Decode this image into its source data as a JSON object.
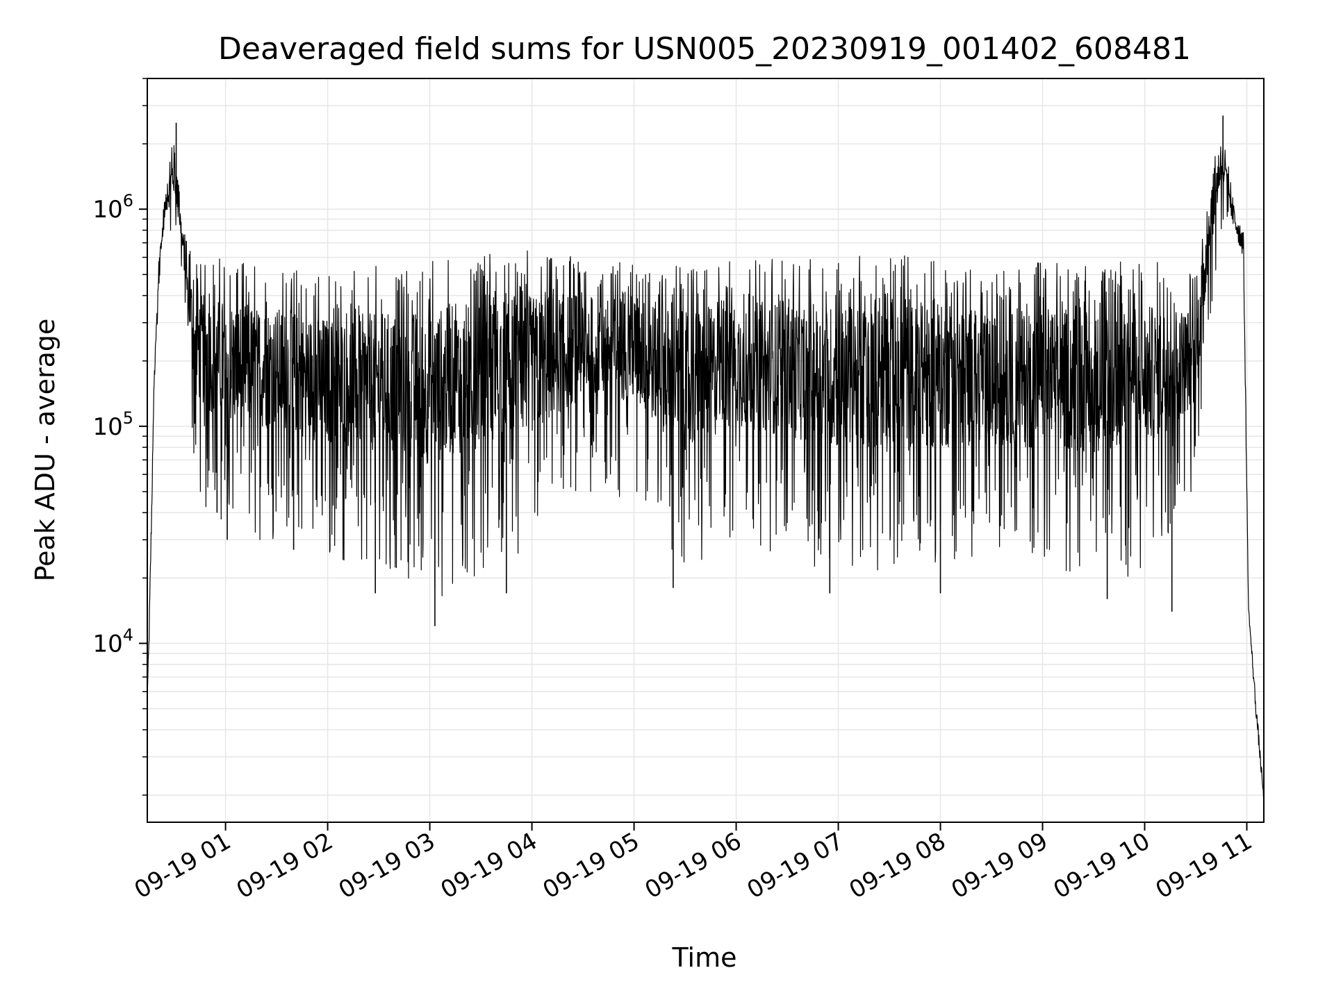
{
  "chart_data": {
    "type": "line",
    "title": "Deaveraged field sums for USN005_20230919_001402_608481",
    "xlabel": "Time",
    "ylabel": "Peak ADU - average",
    "yscale": "log",
    "grid": true,
    "line_color": "#000000",
    "grid_color": "#e6e6e6",
    "xlim": [
      "2023-09-19T00:14:02",
      "2023-09-19T11:10:00"
    ],
    "ylim": [
      1500,
      4000000
    ],
    "x_ticks": [
      {
        "value": "2023-09-19T01:00",
        "label": "09-19 01"
      },
      {
        "value": "2023-09-19T02:00",
        "label": "09-19 02"
      },
      {
        "value": "2023-09-19T03:00",
        "label": "09-19 03"
      },
      {
        "value": "2023-09-19T04:00",
        "label": "09-19 04"
      },
      {
        "value": "2023-09-19T05:00",
        "label": "09-19 05"
      },
      {
        "value": "2023-09-19T06:00",
        "label": "09-19 06"
      },
      {
        "value": "2023-09-19T07:00",
        "label": "09-19 07"
      },
      {
        "value": "2023-09-19T08:00",
        "label": "09-19 08"
      },
      {
        "value": "2023-09-19T09:00",
        "label": "09-19 09"
      },
      {
        "value": "2023-09-19T10:00",
        "label": "09-19 10"
      },
      {
        "value": "2023-09-19T11:00",
        "label": "09-19 11"
      }
    ],
    "y_ticks": [
      {
        "value": 10000,
        "base": "10",
        "exp": "4"
      },
      {
        "value": 100000,
        "base": "10",
        "exp": "5"
      },
      {
        "value": 1000000,
        "base": "10",
        "exp": "6"
      }
    ],
    "envelope": [
      {
        "x": "2023-09-19T00:14:02",
        "low": 5500,
        "high": 6000
      },
      {
        "x": "2023-09-19T00:15:00",
        "low": 9000,
        "high": 11000
      },
      {
        "x": "2023-09-19T00:18:00",
        "low": 120000,
        "high": 180000
      },
      {
        "x": "2023-09-19T00:21:00",
        "low": 450000,
        "high": 650000
      },
      {
        "x": "2023-09-19T00:24:00",
        "low": 800000,
        "high": 1100000
      },
      {
        "x": "2023-09-19T00:30:00",
        "low": 700000,
        "high": 2500000
      },
      {
        "x": "2023-09-19T00:35:00",
        "low": 500000,
        "high": 800000
      },
      {
        "x": "2023-09-19T00:42:00",
        "low": 50000,
        "high": 600000
      },
      {
        "x": "2023-09-19T01:00:00",
        "low": 30000,
        "high": 600000
      },
      {
        "x": "2023-09-19T01:30:00",
        "low": 30000,
        "high": 550000
      },
      {
        "x": "2023-09-19T02:00:00",
        "low": 25000,
        "high": 500000
      },
      {
        "x": "2023-09-19T02:30:00",
        "low": 20000,
        "high": 550000
      },
      {
        "x": "2023-09-19T03:00:00",
        "low": 15000,
        "high": 600000
      },
      {
        "x": "2023-09-19T03:30:00",
        "low": 20000,
        "high": 650000
      },
      {
        "x": "2023-09-19T04:00:00",
        "low": 25000,
        "high": 650000
      },
      {
        "x": "2023-09-19T04:30:00",
        "low": 50000,
        "high": 600000
      },
      {
        "x": "2023-09-19T05:00:00",
        "low": 45000,
        "high": 600000
      },
      {
        "x": "2023-09-19T05:30:00",
        "low": 20000,
        "high": 550000
      },
      {
        "x": "2023-09-19T06:00:00",
        "low": 30000,
        "high": 600000
      },
      {
        "x": "2023-09-19T06:30:00",
        "low": 25000,
        "high": 600000
      },
      {
        "x": "2023-09-19T07:00:00",
        "low": 20000,
        "high": 600000
      },
      {
        "x": "2023-09-19T07:30:00",
        "low": 18000,
        "high": 650000
      },
      {
        "x": "2023-09-19T08:00:00",
        "low": 20000,
        "high": 600000
      },
      {
        "x": "2023-09-19T08:30:00",
        "low": 25000,
        "high": 500000
      },
      {
        "x": "2023-09-19T09:00:00",
        "low": 20000,
        "high": 600000
      },
      {
        "x": "2023-09-19T09:30:00",
        "low": 20000,
        "high": 550000
      },
      {
        "x": "2023-09-19T10:00:00",
        "low": 20000,
        "high": 600000
      },
      {
        "x": "2023-09-19T10:30:00",
        "low": 50000,
        "high": 500000
      },
      {
        "x": "2023-09-19T10:38:00",
        "low": 300000,
        "high": 1500000
      },
      {
        "x": "2023-09-19T10:45:00",
        "low": 800000,
        "high": 2700000
      },
      {
        "x": "2023-09-19T10:52:00",
        "low": 800000,
        "high": 1100000
      },
      {
        "x": "2023-09-19T10:58:00",
        "low": 600000,
        "high": 800000
      },
      {
        "x": "2023-09-19T11:01:00",
        "low": 14000,
        "high": 15000
      },
      {
        "x": "2023-09-19T11:05:00",
        "low": 5000,
        "high": 6000
      },
      {
        "x": "2023-09-19T11:10:00",
        "low": 1800,
        "high": 2000
      }
    ],
    "spikes": [
      {
        "x": "2023-09-19T00:31:00",
        "y": 2500000
      },
      {
        "x": "2023-09-19T00:55:00",
        "y": 40000
      },
      {
        "x": "2023-09-19T01:01:00",
        "y": 30000
      },
      {
        "x": "2023-09-19T01:40:00",
        "y": 27000
      },
      {
        "x": "2023-09-19T02:28:00",
        "y": 17000
      },
      {
        "x": "2023-09-19T03:03:00",
        "y": 12000
      },
      {
        "x": "2023-09-19T03:45:00",
        "y": 17000
      },
      {
        "x": "2023-09-19T05:23:00",
        "y": 18000
      },
      {
        "x": "2023-09-19T06:55:00",
        "y": 17000
      },
      {
        "x": "2023-09-19T08:00:00",
        "y": 17000
      },
      {
        "x": "2023-09-19T09:38:00",
        "y": 16000
      },
      {
        "x": "2023-09-19T10:16:00",
        "y": 14000
      },
      {
        "x": "2023-09-19T10:46:00",
        "y": 2700000
      },
      {
        "x": "2023-09-19T10:41:00",
        "y": 1550000
      }
    ]
  }
}
